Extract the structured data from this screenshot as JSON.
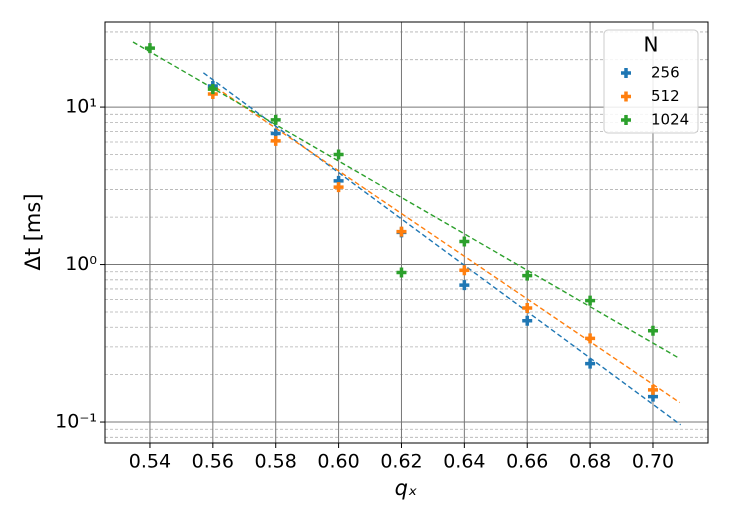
{
  "chart_data": {
    "type": "scatter",
    "x_label": "qₓ",
    "y_label": "Δt [ms]",
    "xlim": [
      0.5257,
      0.7175
    ],
    "xticks": [
      0.54,
      0.56,
      0.58,
      {
        "value": 0.6,
        "label": "0.60"
      },
      0.62,
      0.64,
      0.66,
      0.68,
      {
        "value": 0.7,
        "label": "0.70"
      }
    ],
    "ylim": [
      0.0736,
      34.7
    ],
    "yticks": [
      {
        "value": 0.1,
        "label": "10⁻¹"
      },
      {
        "value": 1,
        "label": "10⁰"
      },
      {
        "value": 10,
        "label": "10¹"
      }
    ],
    "log_y": true,
    "grid": true,
    "minor_grid": true,
    "legend_title": "N",
    "legend_position": "upper right",
    "series": [
      {
        "name": "256",
        "color": "#1f77b4",
        "x": [
          0.56,
          0.58,
          0.6,
          0.62,
          0.64,
          0.66,
          0.68,
          0.7
        ],
        "values": [
          13.6,
          6.8,
          3.4,
          1.6,
          0.74,
          0.44,
          0.235,
          0.145
        ],
        "fit_x": [
          0.557,
          0.7088
        ],
        "fit_values": [
          16.5,
          0.096
        ]
      },
      {
        "name": "512",
        "color": "#ff7f0e",
        "x": [
          0.56,
          0.58,
          0.6,
          0.62,
          0.64,
          0.66,
          0.68,
          0.7
        ],
        "values": [
          12.1,
          6.1,
          3.1,
          1.62,
          0.92,
          0.53,
          0.34,
          0.16
        ],
        "fit_x": [
          0.561,
          0.7085
        ],
        "fit_values": [
          13.3,
          0.133
        ]
      },
      {
        "name": "1024",
        "color": "#2ca02c",
        "x": [
          0.54,
          0.56,
          0.58,
          0.6,
          0.62,
          0.64,
          0.66,
          0.68,
          0.7
        ],
        "values": [
          23.7,
          13.0,
          8.3,
          5.0,
          0.89,
          1.4,
          0.85,
          0.59,
          0.38
        ],
        "fit_x": [
          0.5346,
          0.7085
        ],
        "fit_values": [
          25.9,
          0.253
        ]
      }
    ]
  }
}
